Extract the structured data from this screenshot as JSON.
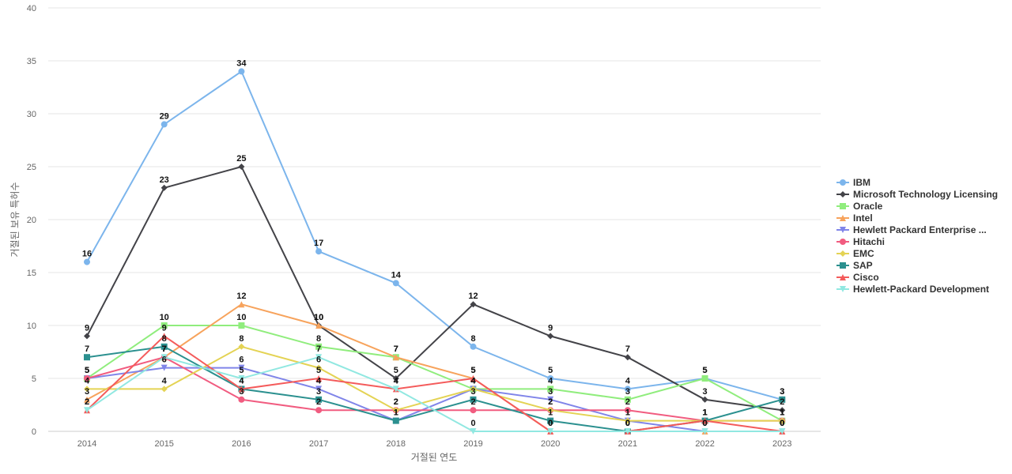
{
  "chart_data": {
    "type": "line",
    "xlabel": "거절된 연도",
    "ylabel": "거절된 보유 특허수",
    "ylim": [
      0,
      40
    ],
    "yticks": [
      0,
      5,
      10,
      15,
      20,
      25,
      30,
      35,
      40
    ],
    "x": [
      "2014",
      "2015",
      "2016",
      "2017",
      "2018",
      "2019",
      "2020",
      "2021",
      "2022",
      "2023"
    ],
    "grid": true,
    "legend_position": "right",
    "series": [
      {
        "name": "IBM",
        "color": "#7cb5ec",
        "marker": "circle",
        "values": [
          16,
          29,
          34,
          17,
          14,
          8,
          5,
          4,
          5,
          3
        ]
      },
      {
        "name": "Microsoft Technology Licensing",
        "color": "#434348",
        "marker": "diamond",
        "values": [
          9,
          23,
          25,
          10,
          5,
          12,
          9,
          7,
          3,
          2
        ]
      },
      {
        "name": "Oracle",
        "color": "#90ed7d",
        "marker": "square",
        "values": [
          5,
          10,
          10,
          8,
          7,
          4,
          4,
          3,
          5,
          1
        ]
      },
      {
        "name": "Intel",
        "color": "#f7a35c",
        "marker": "triangle",
        "values": [
          3,
          7,
          12,
          10,
          7,
          5,
          0,
          0,
          0,
          0
        ]
      },
      {
        "name": "Hewlett Packard Enterprise ...",
        "color": "#8085e9",
        "marker": "triangle-down",
        "values": [
          5,
          6,
          6,
          4,
          1,
          4,
          3,
          1,
          0,
          0
        ]
      },
      {
        "name": "Hitachi",
        "color": "#f15c80",
        "marker": "circle",
        "values": [
          5,
          7,
          3,
          2,
          2,
          2,
          2,
          2,
          1,
          1
        ]
      },
      {
        "name": "EMC",
        "color": "#e4d354",
        "marker": "diamond",
        "values": [
          4,
          4,
          8,
          6,
          2,
          4,
          2,
          1,
          1,
          1
        ]
      },
      {
        "name": "SAP",
        "color": "#2b908f",
        "marker": "square",
        "values": [
          7,
          8,
          4,
          3,
          1,
          3,
          1,
          0,
          1,
          3
        ]
      },
      {
        "name": "Cisco",
        "color": "#f45b5b",
        "marker": "triangle",
        "values": [
          2,
          9,
          4,
          5,
          4,
          5,
          0,
          0,
          1,
          0
        ]
      },
      {
        "name": "Hewlett-Packard Development",
        "color": "#91e8e1",
        "marker": "triangle-down",
        "values": [
          2,
          7,
          5,
          7,
          4,
          0,
          0,
          0,
          0,
          0
        ]
      }
    ]
  }
}
